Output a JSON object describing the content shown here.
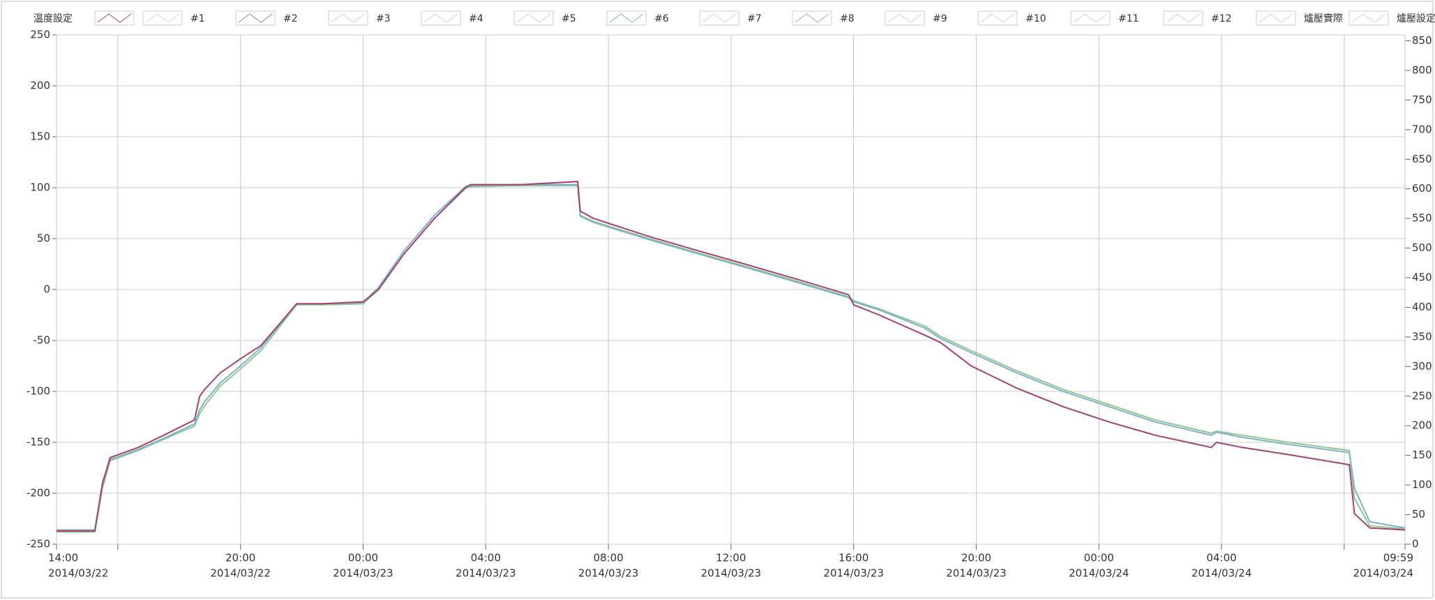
{
  "chart_data": {
    "type": "line",
    "x": [
      "2014/03/22 14:00",
      "2014/03/22 15:15",
      "2014/03/22 15:30",
      "2014/03/22 15:45",
      "2014/03/22 16:40",
      "2014/03/22 17:30",
      "2014/03/22 18:30",
      "2014/03/22 18:40",
      "2014/03/22 18:50",
      "2014/03/22 19:20",
      "2014/03/22 20:00",
      "2014/03/22 20:40",
      "2014/03/22 21:50",
      "2014/03/22 22:40",
      "2014/03/23 00:00",
      "2014/03/23 00:30",
      "2014/03/23 01:20",
      "2014/03/23 02:20",
      "2014/03/23 03:20",
      "2014/03/23 03:30",
      "2014/03/23 05:10",
      "2014/03/23 07:00",
      "2014/03/23 07:05",
      "2014/03/23 07:30",
      "2014/03/23 09:20",
      "2014/03/23 11:10",
      "2014/03/23 12:20",
      "2014/03/23 14:10",
      "2014/03/23 15:50",
      "2014/03/23 16:00",
      "2014/03/23 16:50",
      "2014/03/23 18:20",
      "2014/03/23 18:50",
      "2014/03/23 19:50",
      "2014/03/23 21:20",
      "2014/03/23 22:50",
      "2014/03/24 00:20",
      "2014/03/24 01:50",
      "2014/03/24 03:40",
      "2014/03/24 03:50",
      "2014/03/24 04:40",
      "2014/03/24 06:10",
      "2014/03/24 08:10",
      "2014/03/24 08:20",
      "2014/03/24 08:50",
      "2014/03/24 09:59"
    ],
    "xlim": [
      "2014/03/22 14:00",
      "2014/03/24 09:59"
    ],
    "xticks": [
      {
        "value": "2014/03/22 14:00",
        "label": [
          "14:00",
          "2014/03/22"
        ]
      },
      {
        "value": "2014/03/22 16:00",
        "label": null
      },
      {
        "value": "2014/03/22 20:00",
        "label": [
          "20:00",
          "2014/03/22"
        ]
      },
      {
        "value": "2014/03/23 00:00",
        "label": [
          "00:00",
          "2014/03/23"
        ]
      },
      {
        "value": "2014/03/23 04:00",
        "label": [
          "04:00",
          "2014/03/23"
        ]
      },
      {
        "value": "2014/03/23 08:00",
        "label": [
          "08:00",
          "2014/03/23"
        ]
      },
      {
        "value": "2014/03/23 12:00",
        "label": [
          "12:00",
          "2014/03/23"
        ]
      },
      {
        "value": "2014/03/23 16:00",
        "label": [
          "16:00",
          "2014/03/23"
        ]
      },
      {
        "value": "2014/03/23 20:00",
        "label": [
          "20:00",
          "2014/03/23"
        ]
      },
      {
        "value": "2014/03/24 00:00",
        "label": [
          "00:00",
          "2014/03/24"
        ]
      },
      {
        "value": "2014/03/24 04:00",
        "label": [
          "04:00",
          "2014/03/24"
        ]
      },
      {
        "value": "2014/03/24 08:00",
        "label": null
      },
      {
        "value": "2014/03/24 09:59",
        "label": [
          "09:59",
          "2014/03/24"
        ]
      }
    ],
    "ylim": [
      -250,
      250
    ],
    "yticks": [
      -250,
      -200,
      -150,
      -100,
      -50,
      0,
      50,
      100,
      150,
      200,
      250
    ],
    "y2lim": [
      0,
      860
    ],
    "y2ticks": [
      0,
      50,
      100,
      150,
      200,
      250,
      300,
      350,
      400,
      450,
      500,
      550,
      600,
      650,
      700,
      750,
      800,
      850
    ],
    "grid": true,
    "series": [
      {
        "name": "温度設定",
        "color": "#a8406a",
        "values": [
          -237,
          -237,
          -190,
          -165,
          -155,
          -143,
          -128,
          -105,
          -98,
          -82,
          -68,
          -55,
          -14,
          -14,
          -12,
          0,
          35,
          70,
          100,
          103,
          103,
          106,
          77,
          70,
          52,
          36,
          26,
          10,
          -5,
          -15,
          -25,
          -45,
          -52,
          -75,
          -97,
          -115,
          -130,
          -143,
          -155,
          -150,
          -155,
          -162,
          -172,
          -220,
          -234,
          -236
        ]
      },
      {
        "name": "#1",
        "color": "#d8dde0"
      },
      {
        "name": "#2",
        "color": "#8a8a8a"
      },
      {
        "name": "#3",
        "color": "#d0d0d0"
      },
      {
        "name": "#4",
        "color": "#d0d0d0"
      },
      {
        "name": "#5",
        "color": "#d0d0d0"
      },
      {
        "name": "#6",
        "color": "#7fb0d0",
        "values": [
          -236,
          -236,
          -192,
          -167,
          -157,
          -146,
          -132,
          -118,
          -110,
          -92,
          -75,
          -57,
          -14,
          -14,
          -13,
          2,
          38,
          73,
          101,
          102,
          103,
          103,
          72,
          66,
          49,
          33,
          23,
          7,
          -8,
          -12,
          -20,
          -38,
          -48,
          -62,
          -82,
          -100,
          -115,
          -130,
          -143,
          -140,
          -145,
          -152,
          -160,
          -195,
          -228,
          -234
        ]
      },
      {
        "name": "#7",
        "color": "#d0d0d0"
      },
      {
        "name": "#8",
        "color": "#8fc98a",
        "values": [
          -238,
          -238,
          -195,
          -168,
          -158,
          -147,
          -134,
          -122,
          -114,
          -95,
          -78,
          -60,
          -15,
          -15,
          -14,
          0,
          35,
          70,
          99,
          101,
          102,
          102,
          73,
          67,
          50,
          34,
          24,
          8,
          -7,
          -11,
          -19,
          -36,
          -46,
          -60,
          -80,
          -98,
          -113,
          -128,
          -141,
          -139,
          -143,
          -150,
          -158,
          -205,
          -232,
          -235
        ]
      },
      {
        "name": "#9",
        "color": "#d0d0d0"
      },
      {
        "name": "#10",
        "color": "#d0d0d0"
      },
      {
        "name": "#11",
        "color": "#d0d0d0"
      },
      {
        "name": "#12",
        "color": "#d0d0d0"
      },
      {
        "name": "爐壓實際",
        "color": "#d0d0d0"
      },
      {
        "name": "爐壓設定",
        "color": "#e0d0d8"
      }
    ]
  }
}
